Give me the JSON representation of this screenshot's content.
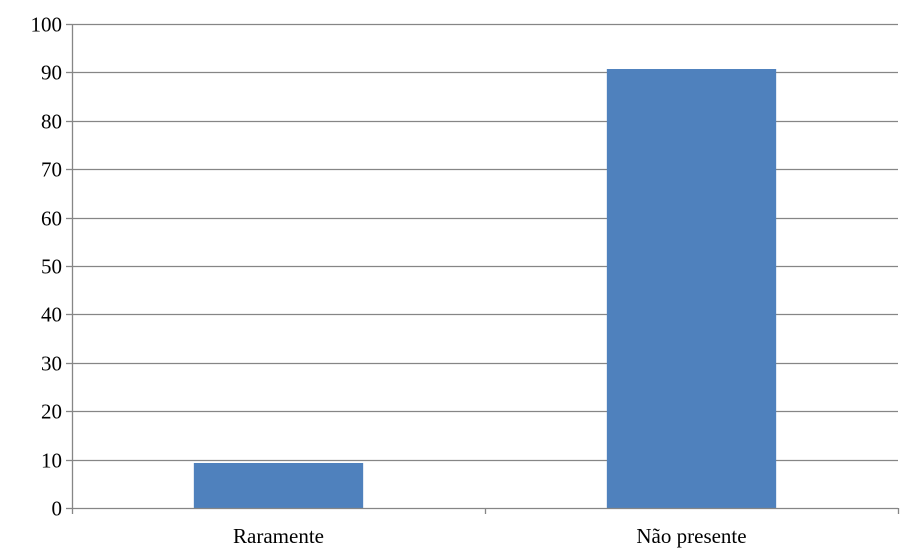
{
  "chart_data": {
    "type": "bar",
    "categories": [
      "Raramente",
      "Não presente"
    ],
    "values": [
      9.3,
      90.7
    ],
    "title": "",
    "xlabel": "",
    "ylabel": "",
    "ylim": [
      0,
      100
    ],
    "yticks": [
      0,
      10,
      20,
      30,
      40,
      50,
      60,
      70,
      80,
      90,
      100
    ],
    "ytick_labels": [
      "0",
      "10",
      "20",
      "30",
      "40",
      "50",
      "60",
      "70",
      "80",
      "90",
      "100"
    ],
    "grid": true,
    "legend": "none",
    "colors": {
      "bar": "#4F81BD",
      "grid": "#868686",
      "axis": "#868686",
      "text": "#000000"
    }
  }
}
